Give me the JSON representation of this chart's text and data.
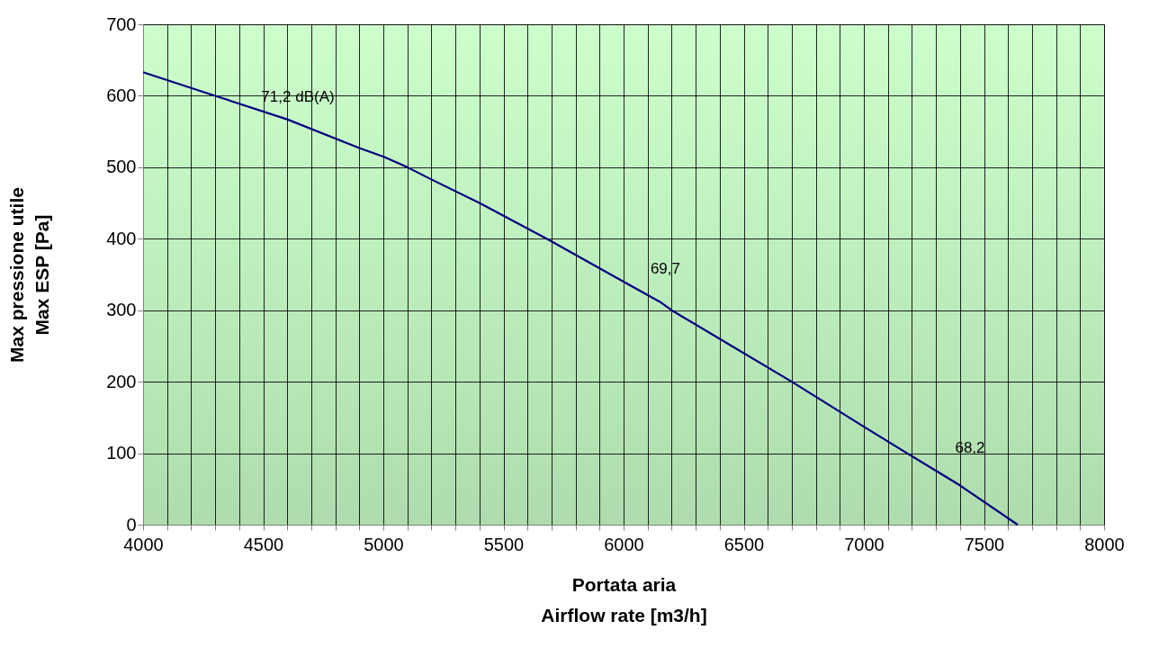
{
  "chart_data": {
    "type": "line",
    "xlabel": "Portata aria\nAirflow rate  [m3/h]",
    "ylabel": "Max pressione utile\nMax ESP  [Pa]",
    "series": [
      {
        "color": "#000080",
        "x": [
          4000,
          4300,
          4600,
          4900,
          5000,
          5100,
          5200,
          5400,
          5680,
          6000,
          6150,
          6200,
          6400,
          6700,
          7000,
          7180,
          7400,
          7640
        ],
        "values": [
          633,
          600,
          567,
          527,
          515,
          500,
          483,
          450,
          400,
          340,
          312,
          300,
          260,
          200,
          137,
          100,
          55,
          0
        ]
      }
    ],
    "xlim": [
      4000,
      8000
    ],
    "ylim": [
      0,
      700
    ],
    "xticks": [
      4000,
      {
        "value": 4100,
        "label": null
      },
      {
        "value": 4200,
        "label": null
      },
      {
        "value": 4300,
        "label": null
      },
      {
        "value": 4400,
        "label": null
      },
      4500,
      {
        "value": 4600,
        "label": null
      },
      {
        "value": 4700,
        "label": null
      },
      {
        "value": 4800,
        "label": null
      },
      {
        "value": 4900,
        "label": null
      },
      5000,
      {
        "value": 5100,
        "label": null
      },
      {
        "value": 5200,
        "label": null
      },
      {
        "value": 5300,
        "label": null
      },
      {
        "value": 5400,
        "label": null
      },
      5500,
      {
        "value": 5600,
        "label": null
      },
      {
        "value": 5700,
        "label": null
      },
      {
        "value": 5800,
        "label": null
      },
      {
        "value": 5900,
        "label": null
      },
      6000,
      {
        "value": 6100,
        "label": null
      },
      {
        "value": 6200,
        "label": null
      },
      {
        "value": 6300,
        "label": null
      },
      {
        "value": 6400,
        "label": null
      },
      6500,
      {
        "value": 6600,
        "label": null
      },
      {
        "value": 6700,
        "label": null
      },
      {
        "value": 6800,
        "label": null
      },
      {
        "value": 6900,
        "label": null
      },
      7000,
      {
        "value": 7100,
        "label": null
      },
      {
        "value": 7200,
        "label": null
      },
      {
        "value": 7300,
        "label": null
      },
      {
        "value": 7400,
        "label": null
      },
      7500,
      {
        "value": 7600,
        "label": null
      },
      {
        "value": 7700,
        "label": null
      },
      {
        "value": 7800,
        "label": null
      },
      {
        "value": 7900,
        "label": null
      },
      8000
    ],
    "yticks": [
      0,
      100,
      200,
      300,
      400,
      500,
      600,
      700
    ],
    "grid": true,
    "marker": "none",
    "line_style": "solid",
    "annotations": [
      "71,2 dB(A)",
      "69,7",
      "68,2"
    ]
  }
}
